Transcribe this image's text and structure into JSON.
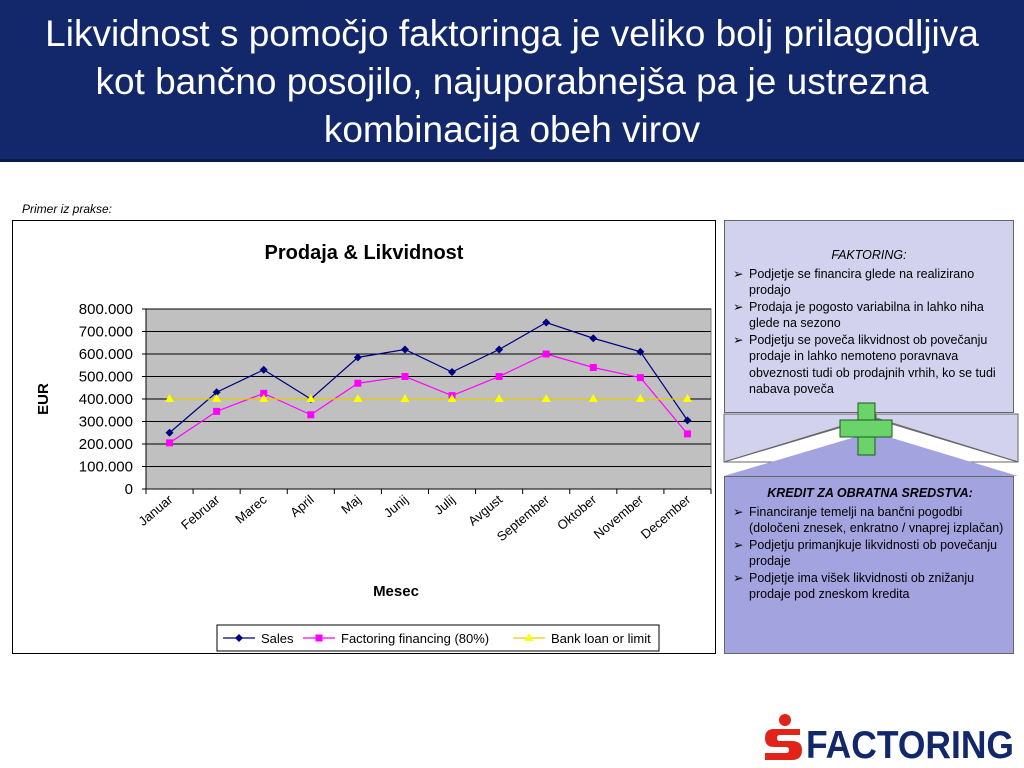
{
  "title": "Likvidnost s pomočjo faktoringa je veliko bolj prilagodljiva kot bančno posojilo, najuporabnejša pa je ustrezna kombinacija obeh virov",
  "primer_label": "Primer iz prakse:",
  "colors": {
    "title_bg": "#13286a",
    "sales": "#000080",
    "factoring": "#ff00ff",
    "bank": "#ffff00",
    "plot_bg": "#c0c0c0",
    "panel_top": "#d2d2ef",
    "panel_bottom": "#a3a3e0",
    "logo_red": "#e2231a",
    "cross_green": "#6ad36a"
  },
  "chart_data": {
    "type": "line",
    "title": "Prodaja & Likvidnost",
    "xlabel": "Mesec",
    "ylabel": "EUR",
    "categories": [
      "Januar",
      "Februar",
      "Marec",
      "April",
      "Maj",
      "Junij",
      "Julij",
      "Avgust",
      "September",
      "Oktober",
      "November",
      "December"
    ],
    "ylim": [
      0,
      800000
    ],
    "yticks": [
      0,
      100000,
      200000,
      300000,
      400000,
      500000,
      600000,
      700000,
      800000
    ],
    "ytick_labels": [
      "0",
      "100.000",
      "200.000",
      "300.000",
      "400.000",
      "500.000",
      "600.000",
      "700.000",
      "800.000"
    ],
    "grid": true,
    "legend_position": "bottom",
    "series": [
      {
        "name": "Sales",
        "marker": "diamond",
        "values": [
          250000,
          430000,
          530000,
          400000,
          585000,
          620000,
          520000,
          620000,
          740000,
          670000,
          610000,
          305000
        ]
      },
      {
        "name": "Factoring financing (80%)",
        "marker": "square",
        "values": [
          205000,
          345000,
          425000,
          330000,
          470000,
          500000,
          415000,
          500000,
          600000,
          540000,
          495000,
          245000
        ]
      },
      {
        "name": "Bank loan or limit",
        "marker": "triangle",
        "values": [
          400000,
          400000,
          400000,
          400000,
          400000,
          400000,
          400000,
          400000,
          400000,
          400000,
          400000,
          400000
        ]
      }
    ]
  },
  "panel_top": {
    "title": "FAKTORING:",
    "bullet": "➢",
    "items": [
      "Podjetje se financira glede na realizirano prodajo",
      "Prodaja je pogosto variabilna in lahko niha glede na sezono",
      "Podjetju se poveča likvidnost ob povečanju prodaje in lahko nemoteno poravnava obveznosti tudi ob prodajnih vrhih, ko se tudi nabava poveča"
    ]
  },
  "panel_bottom": {
    "title": "KREDIT ZA OBRATNA SREDSTVA:",
    "bullet": "➢",
    "items": [
      "Financiranje temelji na  bančni pogodbi (določeni znesek, enkratno / vnaprej izplačan)",
      "Podjetju primanjkuje likvidnosti ob povečanju prodaje",
      "Podjetje ima višek likvidnosti ob znižanju prodaje pod zneskom kredita"
    ]
  },
  "logo": {
    "text": "FACTORING",
    "icon": "s-logo-icon"
  }
}
